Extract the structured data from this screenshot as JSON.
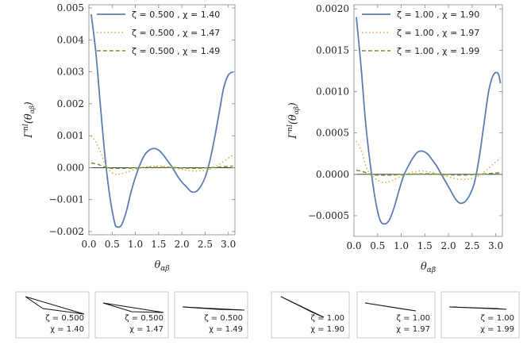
{
  "chart_data": [
    {
      "type": "line",
      "title": "",
      "xlabel": "θαβ",
      "ylabel": "Γnl(θαβ)",
      "xlim": [
        0,
        3.14159
      ],
      "ylim": [
        -0.0021,
        0.0051
      ],
      "xticks": [
        "0.0",
        "0.5",
        "1.0",
        "1.5",
        "2.0",
        "2.5",
        "3.0"
      ],
      "yticks": [
        "−0.002",
        "−0.001",
        "0.000",
        "0.001",
        "0.002",
        "0.003",
        "0.004",
        "0.005"
      ],
      "legend_position": "top-right",
      "series": [
        {
          "name": "ζ = 0.500 , χ = 1.40",
          "color": "#5b7db3",
          "dash": "solid",
          "x": [
            0.05,
            0.15,
            0.25,
            0.35,
            0.45,
            0.55,
            0.6,
            0.7,
            0.8,
            0.9,
            1.0,
            1.1,
            1.2,
            1.3,
            1.4,
            1.5,
            1.6,
            1.7,
            1.8,
            1.9,
            2.0,
            2.1,
            2.2,
            2.3,
            2.4,
            2.5,
            2.6,
            2.7,
            2.8,
            2.9,
            3.0,
            3.1
          ],
          "y": [
            0.0048,
            0.0036,
            0.0019,
            0.0003,
            -0.0009,
            -0.0017,
            -0.00185,
            -0.0018,
            -0.0014,
            -0.0008,
            -0.0003,
            0.0001,
            0.0004,
            0.00055,
            0.0006,
            0.00055,
            0.0004,
            0.0002,
            0.0,
            -0.00025,
            -0.00045,
            -0.0006,
            -0.00075,
            -0.00075,
            -0.0006,
            -0.0003,
            0.0002,
            0.0009,
            0.0017,
            0.0025,
            0.0029,
            0.003
          ]
        },
        {
          "name": "ζ = 0.500 , χ = 1.47",
          "color": "#e8a43a",
          "dash": "dotted",
          "x": [
            0.05,
            0.15,
            0.25,
            0.35,
            0.45,
            0.55,
            0.65,
            0.8,
            1.0,
            1.2,
            1.4,
            1.6,
            1.8,
            2.0,
            2.2,
            2.4,
            2.6,
            2.8,
            3.0,
            3.1
          ],
          "y": [
            0.001,
            0.0008,
            0.0005,
            0.0001,
            -0.0001,
            -0.0002,
            -0.0002,
            -0.00015,
            -5e-05,
            2e-05,
            5e-05,
            5e-05,
            0.0,
            -5e-05,
            -0.0001,
            -0.0001,
            -5e-05,
            0.0001,
            0.0003,
            0.0004
          ]
        },
        {
          "name": "ζ = 0.500 , χ = 1.49",
          "color": "#6c9a2c",
          "dash": "dashed",
          "x": [
            0.05,
            0.2,
            0.35,
            0.5,
            0.8,
            1.1,
            1.4,
            1.7,
            2.0,
            2.3,
            2.6,
            2.9,
            3.1
          ],
          "y": [
            0.00015,
            0.0001,
            2e-05,
            -2e-05,
            -2e-05,
            0.0,
            1e-05,
            1e-05,
            -1e-05,
            -2e-05,
            0.0,
            3e-05,
            5e-05
          ]
        }
      ]
    },
    {
      "type": "line",
      "title": "",
      "xlabel": "θαβ",
      "ylabel": "Γnl(θαβ)",
      "xlim": [
        0,
        3.14159
      ],
      "ylim": [
        -0.00075,
        0.00205
      ],
      "xticks": [
        "0.0",
        "0.5",
        "1.0",
        "1.5",
        "2.0",
        "2.5",
        "3.0"
      ],
      "yticks": [
        "−0.0005",
        "0.0000",
        "0.0005",
        "0.0010",
        "0.0015",
        "0.0020"
      ],
      "legend_position": "top-right",
      "series": [
        {
          "name": "ζ = 1.00 , χ = 1.90",
          "color": "#5b7db3",
          "dash": "solid",
          "x": [
            0.05,
            0.15,
            0.25,
            0.35,
            0.45,
            0.55,
            0.65,
            0.75,
            0.85,
            0.95,
            1.05,
            1.15,
            1.25,
            1.35,
            1.45,
            1.55,
            1.65,
            1.75,
            1.85,
            1.95,
            2.05,
            2.15,
            2.25,
            2.35,
            2.45,
            2.55,
            2.65,
            2.75,
            2.85,
            2.95,
            3.05,
            3.1
          ],
          "y": [
            0.0019,
            0.0013,
            0.0006,
            0.0001,
            -0.0003,
            -0.00055,
            -0.0006,
            -0.00055,
            -0.0004,
            -0.0002,
            -2e-05,
            0.0001,
            0.0002,
            0.00027,
            0.00028,
            0.00025,
            0.00018,
            0.0001,
            0.0,
            -0.0001,
            -0.0002,
            -0.0003,
            -0.00035,
            -0.00033,
            -0.00025,
            -0.0001,
            0.0002,
            0.0006,
            0.001,
            0.0012,
            0.00122,
            0.0011
          ]
        },
        {
          "name": "ζ = 1.00 , χ = 1.97",
          "color": "#e8a43a",
          "dash": "dotted",
          "x": [
            0.05,
            0.15,
            0.25,
            0.35,
            0.5,
            0.65,
            0.8,
            1.0,
            1.2,
            1.4,
            1.6,
            1.8,
            2.0,
            2.2,
            2.4,
            2.6,
            2.8,
            3.0,
            3.1
          ],
          "y": [
            0.0004,
            0.0003,
            0.0001,
            0.0,
            -7e-05,
            -0.0001,
            -8e-05,
            -2e-05,
            2e-05,
            4e-05,
            3e-05,
            0.0,
            -3e-05,
            -6e-05,
            -6e-05,
            -3e-05,
            5e-05,
            0.00015,
            0.0002
          ]
        },
        {
          "name": "ζ = 1.00 , χ = 1.99",
          "color": "#6c9a2c",
          "dash": "dashed",
          "x": [
            0.05,
            0.2,
            0.35,
            0.5,
            0.8,
            1.1,
            1.4,
            1.7,
            2.0,
            2.3,
            2.6,
            2.9,
            3.1
          ],
          "y": [
            5e-05,
            3e-05,
            0.0,
            -1e-05,
            -1e-05,
            0.0,
            5e-06,
            5e-06,
            -5e-06,
            -1e-05,
            0.0,
            1e-05,
            2e-05
          ]
        }
      ]
    }
  ],
  "triangles": [
    {
      "zeta": "ζ = 0.500",
      "chi": "χ = 1.40"
    },
    {
      "zeta": "ζ = 0.500",
      "chi": "χ = 1.47"
    },
    {
      "zeta": "ζ = 0.500",
      "chi": "χ = 1.49"
    },
    {
      "zeta": "ζ = 1.00",
      "chi": "χ = 1.90"
    },
    {
      "zeta": "ζ = 1.00",
      "chi": "χ = 1.97"
    },
    {
      "zeta": "ζ = 1.00",
      "chi": "χ = 1.99"
    }
  ]
}
